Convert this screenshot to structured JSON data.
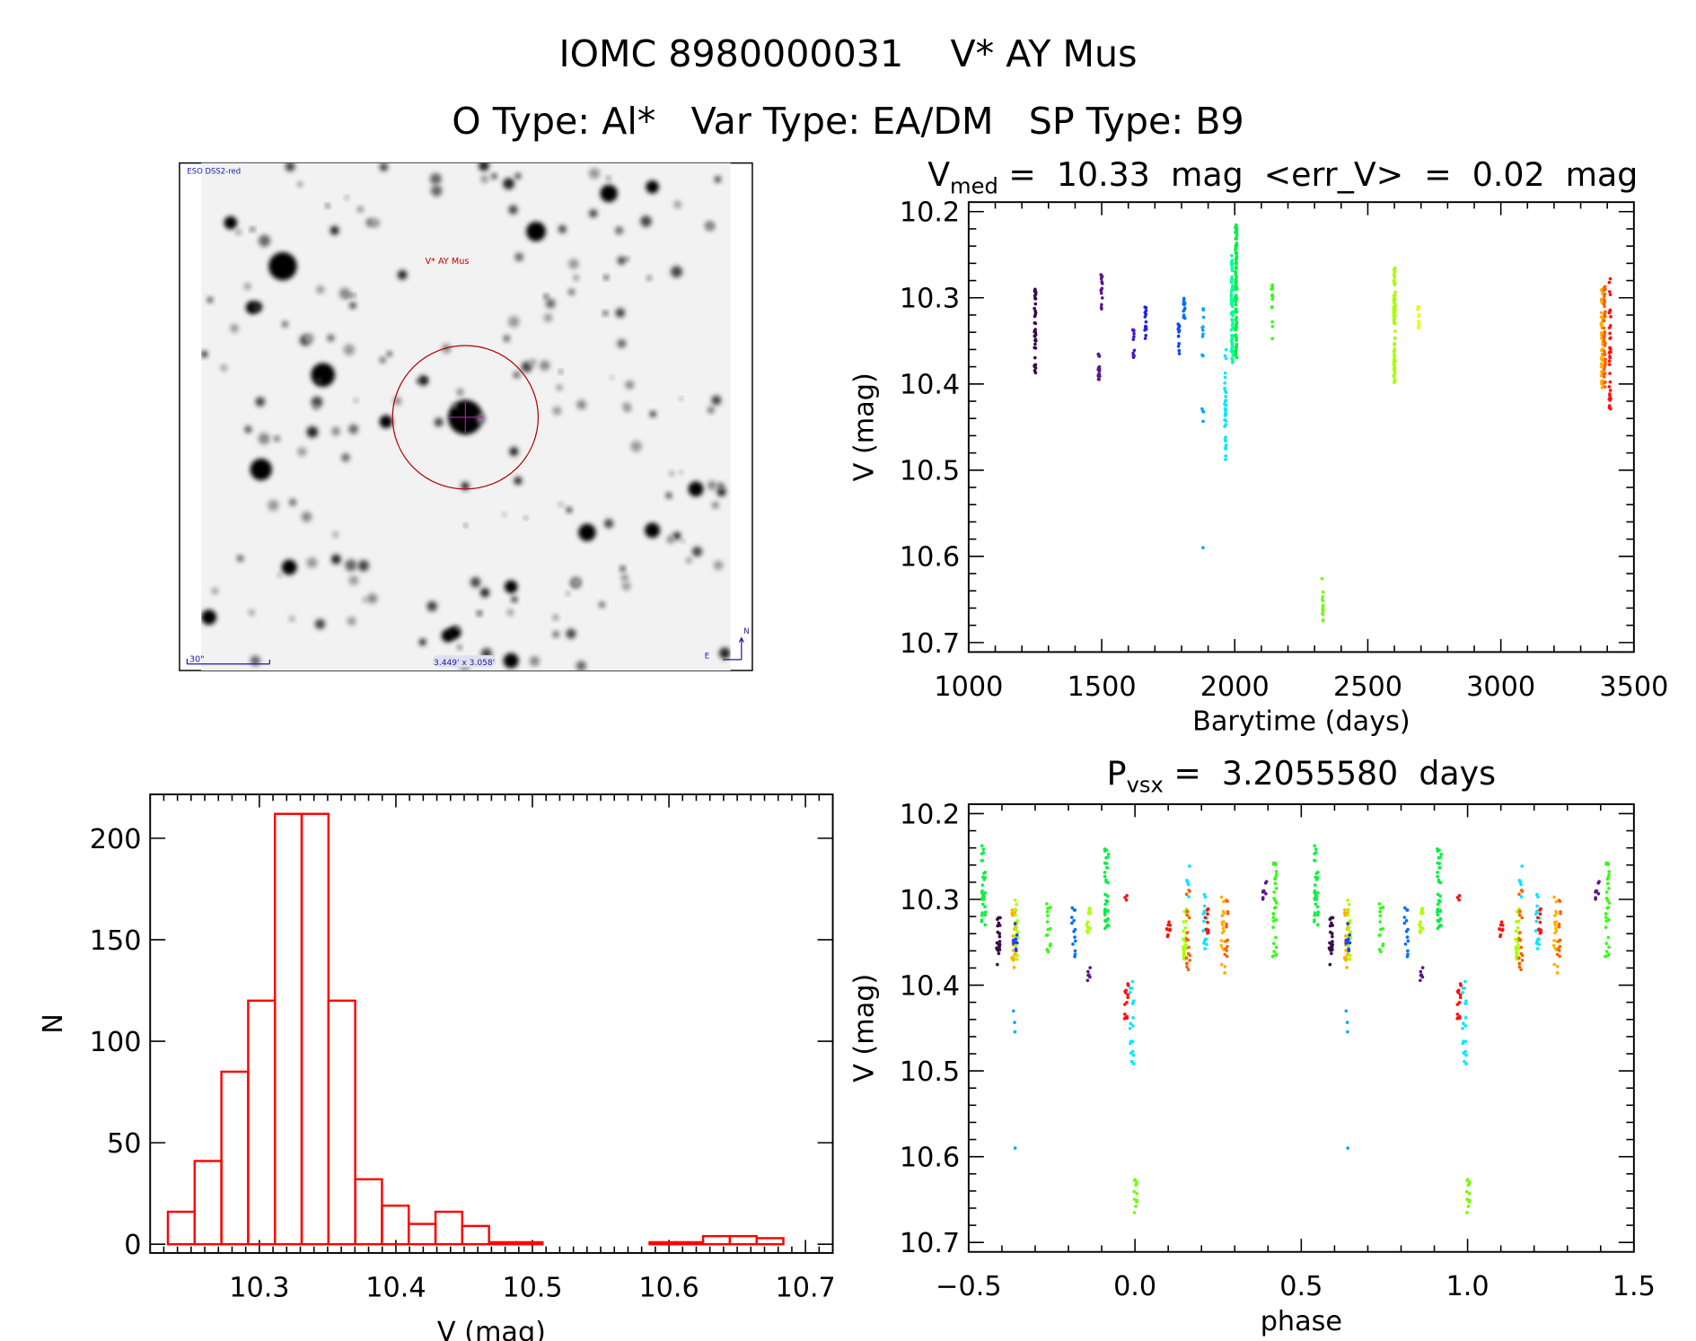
{
  "header": {
    "title": "IOMC 8980000031    V* AY Mus",
    "subtitle": "O Type: Al*   Var Type: EA/DM   SP Type: B9"
  },
  "finder_image": {
    "survey_label": "ESO DSS2-red",
    "target_label": "V* AY Mus",
    "scale_label": "30\"",
    "field_size_label": "3.449' x 3.058'",
    "north_label": "N",
    "east_label": "E"
  },
  "chart_data": [
    {
      "type": "scatter",
      "title_main": "V",
      "title_sub": "med",
      "title_rest": " =  10.33  mag  <err_V>  =  0.02  mag",
      "xlabel": "Barytime (days)",
      "ylabel": "V (mag)",
      "xlim": [
        1000,
        3500
      ],
      "ylim": [
        10.7,
        10.2
      ],
      "xticks": [
        "1000",
        "1500",
        "2000",
        "2500",
        "3000",
        "3500"
      ],
      "yticks": [
        "10.2",
        "10.3",
        "10.4",
        "10.5",
        "10.6",
        "10.7"
      ],
      "clusters": [
        {
          "t": 1250,
          "vmin": 10.29,
          "vmax": 10.39,
          "n": 40,
          "color": "#3a0a48"
        },
        {
          "t": 1490,
          "vmin": 10.365,
          "vmax": 10.4,
          "n": 18,
          "color": "#5a1888"
        },
        {
          "t": 1500,
          "vmin": 10.27,
          "vmax": 10.315,
          "n": 14,
          "color": "#5a1888"
        },
        {
          "t": 1620,
          "vmin": 10.33,
          "vmax": 10.37,
          "n": 12,
          "color": "#4a1ac8"
        },
        {
          "t": 1665,
          "vmin": 10.31,
          "vmax": 10.35,
          "n": 14,
          "color": "#2222e8"
        },
        {
          "t": 1790,
          "vmin": 10.33,
          "vmax": 10.365,
          "n": 12,
          "color": "#1048ff"
        },
        {
          "t": 1810,
          "vmin": 10.28,
          "vmax": 10.325,
          "n": 14,
          "color": "#0070ff"
        },
        {
          "t": 1880,
          "vmin": 10.31,
          "vmax": 10.37,
          "n": 10,
          "color": "#00a8ff"
        },
        {
          "t": 1880,
          "vmin": 10.425,
          "vmax": 10.46,
          "n": 4,
          "color": "#00a8ff"
        },
        {
          "t": 1880,
          "vmin": 10.59,
          "vmax": 10.59,
          "n": 1,
          "color": "#00a8ff"
        },
        {
          "t": 1965,
          "vmin": 10.36,
          "vmax": 10.495,
          "n": 35,
          "color": "#00e8ff"
        },
        {
          "t": 1990,
          "vmin": 10.25,
          "vmax": 10.38,
          "n": 70,
          "color": "#00ffa0"
        },
        {
          "t": 2005,
          "vmin": 10.215,
          "vmax": 10.37,
          "n": 90,
          "color": "#00f040"
        },
        {
          "t": 2140,
          "vmin": 10.285,
          "vmax": 10.355,
          "n": 14,
          "color": "#30ff10"
        },
        {
          "t": 2330,
          "vmin": 10.625,
          "vmax": 10.68,
          "n": 14,
          "color": "#70ff00"
        },
        {
          "t": 2600,
          "vmin": 10.265,
          "vmax": 10.41,
          "n": 80,
          "color": "#a8ff00"
        },
        {
          "t": 2690,
          "vmin": 10.31,
          "vmax": 10.335,
          "n": 14,
          "color": "#e8ff00"
        },
        {
          "t": 3380,
          "vmin": 10.29,
          "vmax": 10.405,
          "n": 60,
          "color": "#ffb000"
        },
        {
          "t": 3390,
          "vmin": 10.285,
          "vmax": 10.405,
          "n": 60,
          "color": "#ff6000"
        },
        {
          "t": 3410,
          "vmin": 10.275,
          "vmax": 10.45,
          "n": 40,
          "color": "#ff1010"
        }
      ]
    },
    {
      "type": "scatter",
      "title_main": "P",
      "title_sub": "vsx",
      "title_rest": " =  3.2055580  days",
      "xlabel": "phase",
      "ylabel": "V (mag)",
      "xlim": [
        -0.5,
        1.5
      ],
      "ylim": [
        10.7,
        10.2
      ],
      "xticks": [
        "−0.5",
        "0.0",
        "0.5",
        "1.0",
        "1.5"
      ],
      "yticks": [
        "10.2",
        "10.3",
        "10.4",
        "10.5",
        "10.6",
        "10.7"
      ],
      "clusters": [
        {
          "p": -0.455,
          "vmin": 10.228,
          "vmax": 10.33,
          "n": 30,
          "color": "#10f040"
        },
        {
          "p": -0.41,
          "vmin": 10.315,
          "vmax": 10.385,
          "n": 22,
          "color": "#3a0a48"
        },
        {
          "p": -0.365,
          "vmin": 10.31,
          "vmax": 10.38,
          "n": 25,
          "color": "#ffb000"
        },
        {
          "p": -0.355,
          "vmin": 10.3,
          "vmax": 10.37,
          "n": 20,
          "color": "#a8ff00"
        },
        {
          "p": -0.36,
          "vmin": 10.32,
          "vmax": 10.36,
          "n": 10,
          "color": "#2040ff"
        },
        {
          "p": -0.362,
          "vmin": 10.43,
          "vmax": 10.455,
          "n": 3,
          "color": "#00a8ff"
        },
        {
          "p": -0.362,
          "vmin": 10.59,
          "vmax": 10.59,
          "n": 1,
          "color": "#00a8ff"
        },
        {
          "p": -0.26,
          "vmin": 10.305,
          "vmax": 10.37,
          "n": 16,
          "color": "#30ff10"
        },
        {
          "p": -0.185,
          "vmin": 10.305,
          "vmax": 10.37,
          "n": 14,
          "color": "#0070ff"
        },
        {
          "p": -0.14,
          "vmin": 10.31,
          "vmax": 10.34,
          "n": 14,
          "color": "#b0ff00"
        },
        {
          "p": -0.14,
          "vmin": 10.375,
          "vmax": 10.4,
          "n": 6,
          "color": "#5a1888"
        },
        {
          "p": -0.085,
          "vmin": 10.235,
          "vmax": 10.335,
          "n": 35,
          "color": "#00f040"
        },
        {
          "p": -0.03,
          "vmin": 10.29,
          "vmax": 10.305,
          "n": 3,
          "color": "#ff1010"
        },
        {
          "p": -0.025,
          "vmin": 10.395,
          "vmax": 10.44,
          "n": 14,
          "color": "#ff1010"
        },
        {
          "p": -0.01,
          "vmin": 10.395,
          "vmax": 10.495,
          "n": 18,
          "color": "#00e8ff"
        },
        {
          "p": 0.0,
          "vmin": 10.62,
          "vmax": 10.68,
          "n": 12,
          "color": "#70ff00"
        },
        {
          "p": 0.1,
          "vmin": 10.325,
          "vmax": 10.345,
          "n": 10,
          "color": "#ff1010"
        },
        {
          "p": 0.15,
          "vmin": 10.31,
          "vmax": 10.37,
          "n": 30,
          "color": "#a8ff00"
        },
        {
          "p": 0.16,
          "vmin": 10.28,
          "vmax": 10.385,
          "n": 20,
          "color": "#ff6000"
        },
        {
          "p": 0.16,
          "vmin": 10.26,
          "vmax": 10.3,
          "n": 6,
          "color": "#00e8ff"
        },
        {
          "p": 0.21,
          "vmin": 10.29,
          "vmax": 10.36,
          "n": 16,
          "color": "#00e8ff"
        },
        {
          "p": 0.215,
          "vmin": 10.31,
          "vmax": 10.34,
          "n": 10,
          "color": "#ff1010"
        },
        {
          "p": 0.265,
          "vmin": 10.29,
          "vmax": 10.39,
          "n": 20,
          "color": "#ffb000"
        },
        {
          "p": 0.275,
          "vmin": 10.3,
          "vmax": 10.37,
          "n": 14,
          "color": "#ff6000"
        },
        {
          "p": 0.39,
          "vmin": 10.27,
          "vmax": 10.3,
          "n": 8,
          "color": "#5a1888"
        },
        {
          "p": 0.42,
          "vmin": 10.255,
          "vmax": 10.37,
          "n": 30,
          "color": "#30ff10"
        }
      ]
    },
    {
      "type": "bar",
      "xlabel": "V (mag)",
      "ylabel": "N",
      "xlim": [
        10.22,
        10.72
      ],
      "ylim": [
        0,
        220
      ],
      "xticks": [
        "10.3",
        "10.4",
        "10.5",
        "10.6",
        "10.7"
      ],
      "yticks": [
        "0",
        "50",
        "100",
        "150",
        "200"
      ],
      "bin_start": 10.233,
      "bin_width": 0.0196,
      "counts": [
        16,
        41,
        85,
        120,
        212,
        212,
        120,
        32,
        19,
        10,
        16,
        9,
        1,
        1,
        0,
        0,
        0,
        0,
        1,
        1,
        4,
        4,
        3
      ],
      "color": "#ff0000"
    }
  ]
}
